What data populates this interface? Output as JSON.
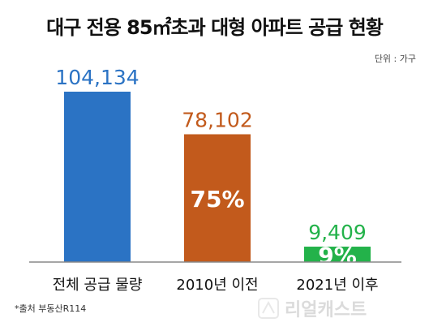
{
  "title": "대구 전용 85㎡초과 대형 아파트 공급 현황",
  "unit_label": "단위 : 가구",
  "source": "*출처 부동산R114",
  "watermark": "리얼캐스트",
  "colors": {
    "bar_total": "#2b73c4",
    "bar_before": "#c25a1c",
    "bar_after": "#23b24a",
    "axis": "#888888",
    "category_text": "#111111"
  },
  "chart_data": {
    "type": "bar",
    "categories": [
      "전체 공급 물량",
      "2010년 이전",
      "2021년 이후"
    ],
    "values": [
      104134,
      78102,
      9409
    ],
    "value_labels": [
      "104,134",
      "78,102",
      "9,409"
    ],
    "share_labels": [
      "",
      "75%",
      "9%"
    ],
    "ylim": [
      0,
      104134
    ],
    "grid": false,
    "legend": "none"
  }
}
